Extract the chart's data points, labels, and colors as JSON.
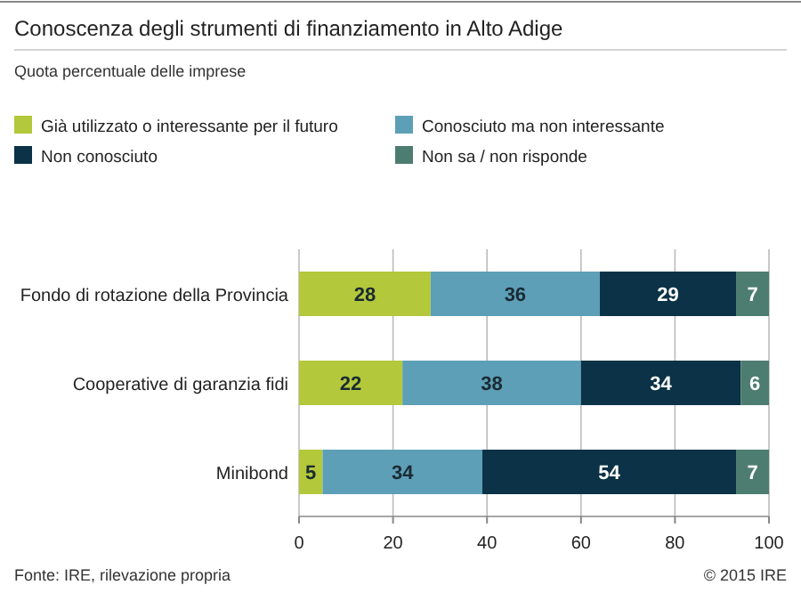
{
  "chart_data": {
    "type": "bar",
    "orientation": "horizontal",
    "stacked": true,
    "title": "Conoscenza degli strumenti di finanziamento in Alto Adige",
    "subtitle": "Quota percentuale delle imprese",
    "categories": [
      "Fondo di rotazione della Provincia",
      "Cooperative di garanzia fidi",
      "Minibond"
    ],
    "series": [
      {
        "name": "Già utilizzato o interessante per il futuro",
        "color": "#b3c83a",
        "values": [
          28,
          22,
          5
        ]
      },
      {
        "name": "Conosciuto ma non interessante",
        "color": "#5d9fb7",
        "values": [
          36,
          38,
          34
        ]
      },
      {
        "name": "Non conosciuto",
        "color": "#0b3246",
        "values": [
          29,
          34,
          54
        ]
      },
      {
        "name": "Non sa / non risponde",
        "color": "#4d7c70",
        "values": [
          7,
          6,
          7
        ]
      }
    ],
    "xlim": [
      0,
      100
    ],
    "xticks": [
      0,
      20,
      40,
      60,
      80,
      100
    ],
    "grid": "x",
    "legend": "top",
    "data_labels": true,
    "annotations": [
      "Fonte: IRE, rilevazione propria",
      "© 2015 IRE"
    ]
  }
}
